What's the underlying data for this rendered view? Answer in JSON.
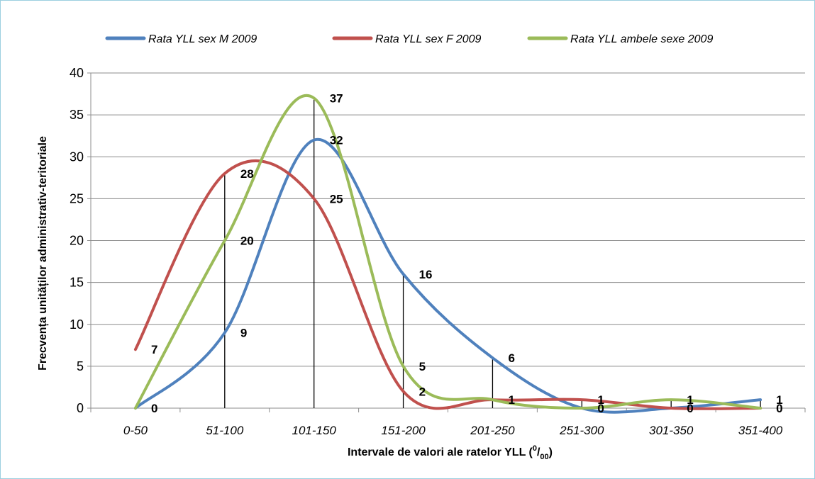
{
  "chart_data": {
    "type": "line",
    "smooth": true,
    "categories": [
      "0-50",
      "51-100",
      "101-150",
      "151-200",
      "201-250",
      "251-300",
      "301-350",
      "351-400"
    ],
    "series": [
      {
        "name": "Rata YLL sex M 2009",
        "color": "#4f81bd",
        "values": [
          0,
          9,
          32,
          16,
          6,
          0,
          0,
          1
        ]
      },
      {
        "name": "Rata YLL sex F 2009",
        "color": "#c0504d",
        "values": [
          7,
          28,
          25,
          2,
          1,
          1,
          0,
          0
        ]
      },
      {
        "name": "Rata YLL ambele sexe 2009",
        "color": "#9bbb59",
        "values": [
          0,
          20,
          37,
          5,
          1,
          0,
          1,
          0
        ]
      }
    ],
    "data_labels": [
      {
        "text": "0",
        "category": "0-50",
        "value": 0
      },
      {
        "text": "7",
        "category": "0-50",
        "value": 7
      },
      {
        "text": "9",
        "category": "51-100",
        "value": 9
      },
      {
        "text": "20",
        "category": "51-100",
        "value": 20
      },
      {
        "text": "28",
        "category": "51-100",
        "value": 28
      },
      {
        "text": "25",
        "category": "101-150",
        "value": 25
      },
      {
        "text": "32",
        "category": "101-150",
        "value": 32
      },
      {
        "text": "37",
        "category": "101-150",
        "value": 37
      },
      {
        "text": "2",
        "category": "151-200",
        "value": 2
      },
      {
        "text": "5",
        "category": "151-200",
        "value": 5
      },
      {
        "text": "16",
        "category": "151-200",
        "value": 16
      },
      {
        "text": "1",
        "category": "201-250",
        "value": 1
      },
      {
        "text": "6",
        "category": "201-250",
        "value": 6
      },
      {
        "text": "0",
        "category": "251-300",
        "value": 0
      },
      {
        "text": "1",
        "category": "251-300",
        "value": 1
      },
      {
        "text": "0",
        "category": "301-350",
        "value": 0
      },
      {
        "text": "1",
        "category": "301-350",
        "value": 1
      },
      {
        "text": "0",
        "category": "351-400",
        "value": 0
      },
      {
        "text": "1",
        "category": "351-400",
        "value": 1
      }
    ],
    "drop_lines": [
      0,
      28,
      37,
      16,
      6,
      1,
      1,
      1
    ],
    "xlabel": {
      "text": "Intervale de valori ale ratelor YLL (",
      "sup": "0",
      "slash": "/",
      "sub": "00",
      "close": ")"
    },
    "ylabel": "Frecvența unităților administrativ-teritoriale",
    "ylim": [
      0,
      40
    ],
    "yticks": [
      0,
      5,
      10,
      15,
      20,
      25,
      30,
      35,
      40
    ],
    "grid": true,
    "legend_position": "top"
  }
}
